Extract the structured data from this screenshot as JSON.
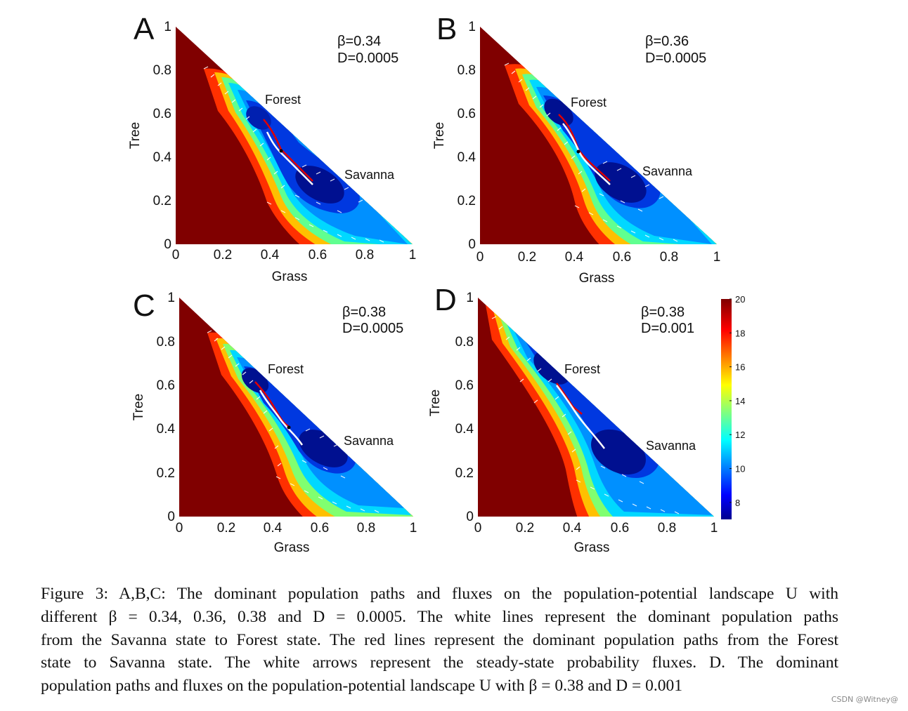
{
  "figure": {
    "panels": [
      {
        "letter": "A",
        "beta": "β=0.34",
        "d": "D=0.0005",
        "forest": "Forest",
        "savanna": "Savanna",
        "xlabel": "Grass",
        "ylabel": "Tree"
      },
      {
        "letter": "B",
        "beta": "β=0.36",
        "d": "D=0.0005",
        "forest": "Forest",
        "savanna": "Savanna",
        "xlabel": "Grass",
        "ylabel": "Tree"
      },
      {
        "letter": "C",
        "beta": "β=0.38",
        "d": "D=0.0005",
        "forest": "Forest",
        "savanna": "Savanna",
        "xlabel": "Grass",
        "ylabel": "Tree"
      },
      {
        "letter": "D",
        "beta": "β=0.38",
        "d": "D=0.001",
        "forest": "Forest",
        "savanna": "Savanna",
        "xlabel": "Grass",
        "ylabel": "Tree"
      }
    ],
    "ticks": [
      "0",
      "0.2",
      "0.4",
      "0.6",
      "0.8",
      "1"
    ],
    "colorbar_ticks": [
      "20",
      "18",
      "16",
      "14",
      "12",
      "10",
      "8"
    ]
  },
  "chart_data": [
    {
      "type": "heatmap",
      "title": "A",
      "annotation": [
        "β=0.34",
        "D=0.0005"
      ],
      "xlabel": "Grass",
      "ylabel": "Tree",
      "xlim": [
        0,
        1
      ],
      "ylim": [
        0,
        1
      ],
      "states": [
        {
          "name": "Forest",
          "x": 0.33,
          "y": 0.58
        },
        {
          "name": "Savanna",
          "x": 0.6,
          "y": 0.26
        }
      ],
      "saddle": {
        "x": 0.45,
        "y": 0.43
      }
    },
    {
      "type": "heatmap",
      "title": "B",
      "annotation": [
        "β=0.36",
        "D=0.0005"
      ],
      "xlabel": "Grass",
      "ylabel": "Tree",
      "xlim": [
        0,
        1
      ],
      "ylim": [
        0,
        1
      ],
      "states": [
        {
          "name": "Forest",
          "x": 0.3,
          "y": 0.6
        },
        {
          "name": "Savanna",
          "x": 0.57,
          "y": 0.28
        }
      ],
      "saddle": {
        "x": 0.43,
        "y": 0.44
      }
    },
    {
      "type": "heatmap",
      "title": "C",
      "annotation": [
        "β=0.38",
        "D=0.0005"
      ],
      "xlabel": "Grass",
      "ylabel": "Tree",
      "xlim": [
        0,
        1
      ],
      "ylim": [
        0,
        1
      ],
      "states": [
        {
          "name": "Forest",
          "x": 0.32,
          "y": 0.63
        },
        {
          "name": "Savanna",
          "x": 0.6,
          "y": 0.33
        }
      ],
      "saddle": {
        "x": 0.47,
        "y": 0.42
      }
    },
    {
      "type": "heatmap",
      "title": "D",
      "annotation": [
        "β=0.38",
        "D=0.001"
      ],
      "xlabel": "Grass",
      "ylabel": "Tree",
      "xlim": [
        0,
        1
      ],
      "ylim": [
        0,
        1
      ],
      "states": [
        {
          "name": "Forest",
          "x": 0.28,
          "y": 0.62
        },
        {
          "name": "Savanna",
          "x": 0.58,
          "y": 0.3
        }
      ],
      "saddle": {
        "x": 0.44,
        "y": 0.43
      }
    }
  ],
  "colorbar": {
    "min": 7,
    "max": 20,
    "ticks": [
      20,
      18,
      16,
      14,
      12,
      10,
      8
    ]
  },
  "caption": {
    "l1": "Figure 3: A,B,C: The dominant population paths and fluxes on the population-potential landscape U with",
    "l2": "different β = 0.34, 0.36, 0.38 and D = 0.0005.  The white lines represent the dominant population paths",
    "l3": "from the Savanna state to Forest state. The red lines represent the dominant population paths from the Forest",
    "l4": "state to Savanna state.  The white arrows represent the steady-state probability fluxes.  D. The dominant",
    "l5": "population paths and fluxes on the population-potential landscape U with β = 0.38 and D = 0.001"
  },
  "watermark": "CSDN @Witney@"
}
